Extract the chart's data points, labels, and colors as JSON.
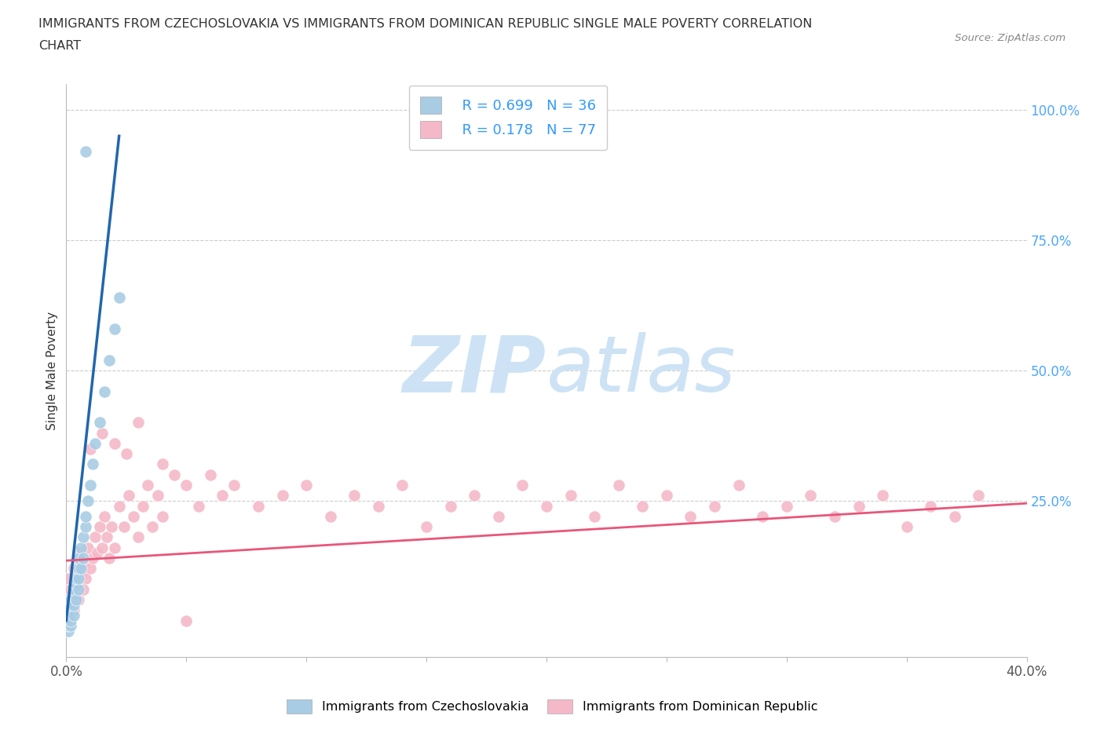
{
  "title_line1": "IMMIGRANTS FROM CZECHOSLOVAKIA VS IMMIGRANTS FROM DOMINICAN REPUBLIC SINGLE MALE POVERTY CORRELATION",
  "title_line2": "CHART",
  "source_text": "Source: ZipAtlas.com",
  "ylabel": "Single Male Poverty",
  "x_min": 0.0,
  "x_max": 0.4,
  "y_min": -0.05,
  "y_max": 1.05,
  "blue_color": "#a8cce4",
  "pink_color": "#f4b8c8",
  "blue_line_color": "#2166ac",
  "pink_line_color": "#e8567a",
  "R_blue": 0.699,
  "N_blue": 36,
  "R_pink": 0.178,
  "N_pink": 77,
  "watermark_zip": "ZIP",
  "watermark_atlas": "atlas",
  "watermark_color": "#cde3f5",
  "blue_scatter_x": [
    0.001,
    0.001,
    0.001,
    0.001,
    0.002,
    0.002,
    0.002,
    0.002,
    0.002,
    0.003,
    0.003,
    0.003,
    0.003,
    0.004,
    0.004,
    0.004,
    0.005,
    0.005,
    0.005,
    0.005,
    0.006,
    0.006,
    0.007,
    0.007,
    0.008,
    0.008,
    0.009,
    0.01,
    0.011,
    0.012,
    0.014,
    0.016,
    0.018,
    0.02,
    0.022,
    0.008
  ],
  "blue_scatter_y": [
    0.0,
    0.01,
    0.02,
    0.03,
    0.01,
    0.02,
    0.04,
    0.05,
    0.06,
    0.03,
    0.05,
    0.07,
    0.08,
    0.06,
    0.09,
    0.1,
    0.08,
    0.1,
    0.12,
    0.14,
    0.12,
    0.16,
    0.14,
    0.18,
    0.2,
    0.22,
    0.25,
    0.28,
    0.32,
    0.36,
    0.4,
    0.46,
    0.52,
    0.58,
    0.64,
    0.92
  ],
  "pink_scatter_x": [
    0.001,
    0.002,
    0.003,
    0.004,
    0.005,
    0.006,
    0.007,
    0.008,
    0.009,
    0.01,
    0.011,
    0.012,
    0.013,
    0.014,
    0.015,
    0.016,
    0.017,
    0.018,
    0.019,
    0.02,
    0.022,
    0.024,
    0.026,
    0.028,
    0.03,
    0.032,
    0.034,
    0.036,
    0.038,
    0.04,
    0.045,
    0.05,
    0.055,
    0.06,
    0.065,
    0.07,
    0.08,
    0.09,
    0.1,
    0.11,
    0.12,
    0.13,
    0.14,
    0.15,
    0.16,
    0.17,
    0.18,
    0.19,
    0.2,
    0.21,
    0.22,
    0.23,
    0.24,
    0.25,
    0.26,
    0.27,
    0.28,
    0.29,
    0.3,
    0.31,
    0.32,
    0.33,
    0.34,
    0.35,
    0.36,
    0.37,
    0.38,
    0.003,
    0.005,
    0.007,
    0.01,
    0.015,
    0.02,
    0.025,
    0.03,
    0.04,
    0.05
  ],
  "pink_scatter_y": [
    0.1,
    0.08,
    0.12,
    0.09,
    0.15,
    0.11,
    0.13,
    0.1,
    0.16,
    0.12,
    0.14,
    0.18,
    0.15,
    0.2,
    0.16,
    0.22,
    0.18,
    0.14,
    0.2,
    0.16,
    0.24,
    0.2,
    0.26,
    0.22,
    0.18,
    0.24,
    0.28,
    0.2,
    0.26,
    0.22,
    0.3,
    0.28,
    0.24,
    0.3,
    0.26,
    0.28,
    0.24,
    0.26,
    0.28,
    0.22,
    0.26,
    0.24,
    0.28,
    0.2,
    0.24,
    0.26,
    0.22,
    0.28,
    0.24,
    0.26,
    0.22,
    0.28,
    0.24,
    0.26,
    0.22,
    0.24,
    0.28,
    0.22,
    0.24,
    0.26,
    0.22,
    0.24,
    0.26,
    0.2,
    0.24,
    0.22,
    0.26,
    0.04,
    0.06,
    0.08,
    0.35,
    0.38,
    0.36,
    0.34,
    0.4,
    0.32,
    0.02
  ]
}
